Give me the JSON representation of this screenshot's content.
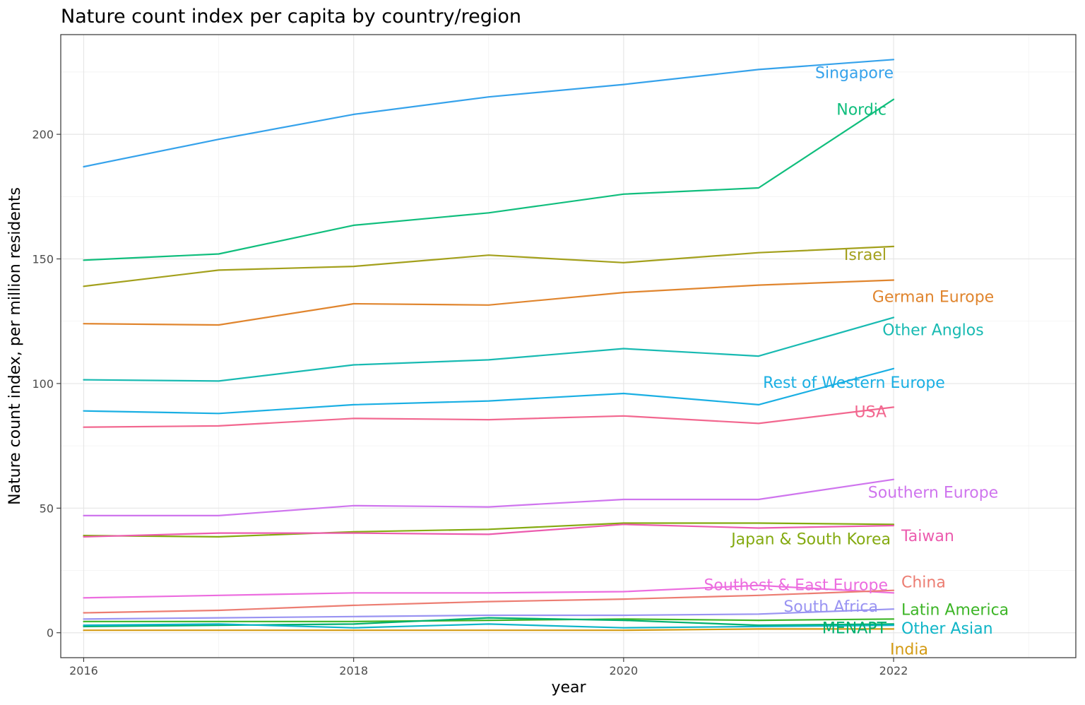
{
  "chart_data": {
    "type": "line",
    "title": "Nature count index per capita by country/region",
    "xlabel": "year",
    "ylabel": "Nature count index, per million residents",
    "xlim": [
      2015.83,
      2023.35
    ],
    "ylim": [
      -10,
      240
    ],
    "x_ticks": [
      2016,
      2018,
      2020,
      2022
    ],
    "y_ticks": [
      0,
      50,
      100,
      150,
      200
    ],
    "x_tick_labels": [
      "2016",
      "2018",
      "2020",
      "2022"
    ],
    "y_tick_labels": [
      "0",
      "50",
      "100",
      "150",
      "200"
    ],
    "grid": true,
    "legend": "direct labels at line ends",
    "x": [
      2016,
      2017,
      2018,
      2019,
      2020,
      2021,
      2022
    ],
    "series": [
      {
        "name": "Singapore",
        "color": "#35A2EB",
        "values": [
          187,
          198,
          208,
          215,
          220,
          226,
          230
        ]
      },
      {
        "name": "Nordic",
        "color": "#10BE7D",
        "values": [
          149.5,
          152,
          163.5,
          168.5,
          176,
          178.5,
          214
        ]
      },
      {
        "name": "Israel",
        "color": "#A3A01C",
        "values": [
          139,
          145.5,
          147,
          151.5,
          148.5,
          152.5,
          155
        ]
      },
      {
        "name": "German Europe",
        "color": "#E0852E",
        "values": [
          124,
          123.5,
          132,
          131.5,
          136.5,
          139.5,
          141.5
        ]
      },
      {
        "name": "Other Anglos",
        "color": "#18BAB2",
        "values": [
          101.5,
          101,
          107.5,
          109.5,
          114,
          111,
          126.5
        ]
      },
      {
        "name": "Rest of Western Europe",
        "color": "#1AAFE3",
        "values": [
          89,
          88,
          91.5,
          93,
          96,
          91.5,
          106
        ]
      },
      {
        "name": "USA",
        "color": "#F2678F",
        "values": [
          82.5,
          83,
          86,
          85.5,
          87,
          84,
          90.5
        ]
      },
      {
        "name": "Southern Europe",
        "color": "#CF75EE",
        "values": [
          47,
          47,
          51,
          50.5,
          53.5,
          53.5,
          61.5
        ]
      },
      {
        "name": "Japan & South Korea",
        "color": "#84AA10",
        "values": [
          39,
          38.5,
          40.5,
          41.5,
          44,
          44,
          43.5
        ]
      },
      {
        "name": "Taiwan",
        "color": "#EC5BAE",
        "values": [
          38.5,
          40,
          40,
          39.5,
          43.5,
          42,
          43
        ]
      },
      {
        "name": "Southest & East Europe",
        "color": "#EC6CDF",
        "values": [
          14,
          15,
          16,
          16,
          16.5,
          19,
          16
        ]
      },
      {
        "name": "China",
        "color": "#EC7D72",
        "values": [
          8,
          9,
          11,
          12.5,
          13.5,
          15,
          17
        ]
      },
      {
        "name": "South Africa",
        "color": "#9993F2",
        "values": [
          5.5,
          6,
          6.5,
          7,
          7,
          7.5,
          9.5
        ]
      },
      {
        "name": "Latin America",
        "color": "#3CB526",
        "values": [
          4.5,
          4.5,
          4.5,
          5,
          5.5,
          5,
          5.5
        ]
      },
      {
        "name": "MENAPT",
        "color": "#00B06E",
        "values": [
          2.5,
          3,
          3.5,
          6,
          5,
          3,
          3.5
        ]
      },
      {
        "name": "Other Asian",
        "color": "#0FB5C7",
        "values": [
          3,
          3.5,
          2,
          3.5,
          2,
          2.5,
          3
        ]
      },
      {
        "name": "India",
        "color": "#D49B14",
        "values": [
          1,
          1,
          1,
          1,
          1,
          1.5,
          1.5
        ]
      }
    ]
  }
}
